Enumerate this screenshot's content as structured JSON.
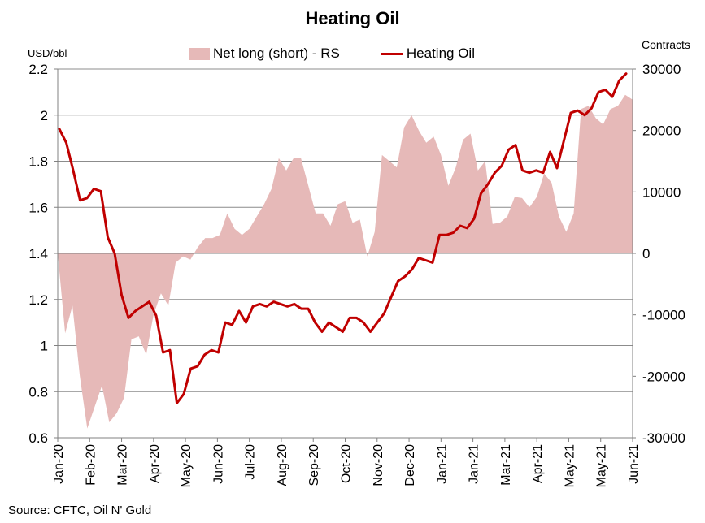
{
  "title": "Heating Oil",
  "source": "Source: CFTC, Oil N' Gold",
  "chart_data": {
    "type": "line+area",
    "title": "Heating Oil",
    "left_axis_unit": "USD/bbl",
    "right_axis_unit": "Contracts",
    "ylim_left": [
      0.6,
      2.2
    ],
    "ylim_right": [
      -30000,
      30000
    ],
    "y_ticks_left": [
      "0.6",
      "0.8",
      "1",
      "1.2",
      "1.4",
      "1.6",
      "1.8",
      "2",
      "2.2"
    ],
    "y_ticks_right": [
      "-30000",
      "-20000",
      "-10000",
      "0",
      "10000",
      "20000",
      "30000"
    ],
    "x_tick_labels": [
      "Jan-20",
      "Feb-20",
      "Mar-20",
      "Apr-20",
      "May-20",
      "Jun-20",
      "Jul-20",
      "Aug-20",
      "Sep-20",
      "Oct-20",
      "Nov-20",
      "Dec-20",
      "Jan-21",
      "Jan-21",
      "Mar-21",
      "Apr-21",
      "May-21",
      "May-21",
      "Jun-21"
    ],
    "legend": [
      "Net long (short) - RS",
      "Heating Oil"
    ],
    "grid": "horizontal",
    "legend_position": "top",
    "series": [
      {
        "name": "Net long (short) - RS",
        "axis": "right",
        "type": "area",
        "color": "#e6b9b8",
        "values": [
          0,
          -13000,
          -8500,
          -20000,
          -28500,
          -25000,
          -21500,
          -27500,
          -26000,
          -23500,
          -14000,
          -13500,
          -16500,
          -10000,
          -6500,
          -8500,
          -1500,
          -500,
          -1000,
          1000,
          2500,
          2500,
          3000,
          6500,
          4000,
          3000,
          4000,
          6000,
          8000,
          10500,
          15500,
          13500,
          15500,
          15500,
          11000,
          6500,
          6500,
          4500,
          8000,
          8500,
          5000,
          5500,
          -500,
          3500,
          16000,
          15000,
          14000,
          20500,
          22500,
          20000,
          18000,
          19000,
          16000,
          11000,
          14000,
          18500,
          19500,
          13500,
          15000,
          4800,
          5000,
          6000,
          9200,
          9000,
          7500,
          9200,
          13000,
          11500,
          6000,
          3500,
          6500,
          23500,
          24000,
          22000,
          21000,
          23500,
          24000,
          25800,
          25000
        ]
      },
      {
        "name": "Heating Oil",
        "axis": "left",
        "type": "line",
        "color": "#c00000",
        "values": [
          1.94,
          1.88,
          1.76,
          1.63,
          1.64,
          1.68,
          1.67,
          1.47,
          1.4,
          1.22,
          1.12,
          1.15,
          1.17,
          1.19,
          1.13,
          0.97,
          0.98,
          0.75,
          0.79,
          0.9,
          0.91,
          0.96,
          0.98,
          0.97,
          1.1,
          1.09,
          1.15,
          1.1,
          1.17,
          1.18,
          1.17,
          1.19,
          1.18,
          1.17,
          1.18,
          1.16,
          1.16,
          1.1,
          1.06,
          1.1,
          1.08,
          1.06,
          1.12,
          1.12,
          1.1,
          1.06,
          1.1,
          1.14,
          1.21,
          1.28,
          1.3,
          1.33,
          1.38,
          1.37,
          1.36,
          1.48,
          1.48,
          1.49,
          1.52,
          1.51,
          1.55,
          1.66,
          1.7,
          1.75,
          1.78,
          1.85,
          1.87,
          1.76,
          1.75,
          1.76,
          1.75,
          1.84,
          1.77,
          1.89,
          2.01,
          2.02,
          2.0,
          2.03,
          2.1,
          2.11,
          2.08,
          2.15,
          2.18
        ]
      }
    ]
  }
}
